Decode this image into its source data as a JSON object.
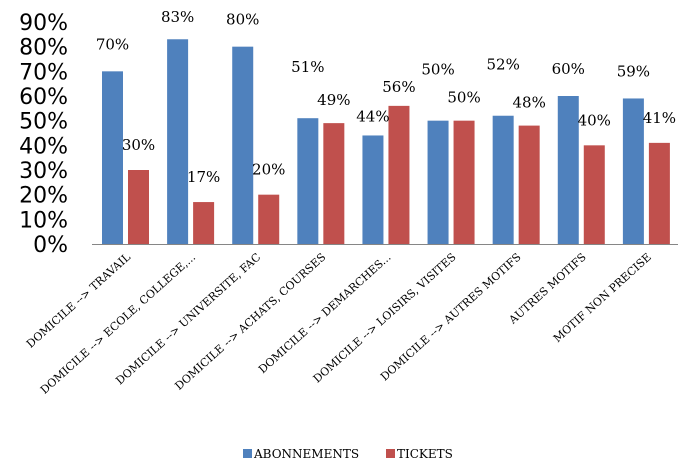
{
  "chart_data": {
    "type": "bar",
    "title": "",
    "xlabel": "",
    "ylabel": "",
    "ylim": [
      0,
      90
    ],
    "y_ticks": [
      "0%",
      "10%",
      "20%",
      "30%",
      "40%",
      "50%",
      "60%",
      "70%",
      "80%",
      "90%"
    ],
    "categories": [
      "DOMICILE --> TRAVAIL",
      "DOMICILE --> ECOLE, COLLEGE,...",
      "DOMICILE --> UNIVERSITE, FAC",
      "DOMICILE --> ACHATS, COURSES",
      "DOMICILE --> DEMARCHES...",
      "DOMICILE --> LOISIRS, VISITES",
      "DOMICILE --> AUTRES MOTIFS",
      "AUTRES MOTIFS",
      "MOTIF NON PRECISE"
    ],
    "series": [
      {
        "name": "ABONNEMENTS",
        "color": "#4F81BD",
        "values": [
          70,
          83,
          80,
          51,
          44,
          50,
          52,
          60,
          59
        ],
        "labels": [
          "70%",
          "83%",
          "80%",
          "51%",
          "44%",
          "50%",
          "52%",
          "60%",
          "59%"
        ]
      },
      {
        "name": "TICKETS",
        "color": "#C0504D",
        "values": [
          30,
          17,
          20,
          49,
          56,
          50,
          48,
          40,
          41
        ],
        "labels": [
          "30%",
          "17%",
          "20%",
          "49%",
          "56%",
          "50%",
          "48%",
          "40%",
          "41%"
        ]
      }
    ],
    "grid": false,
    "legend_position": "bottom"
  }
}
